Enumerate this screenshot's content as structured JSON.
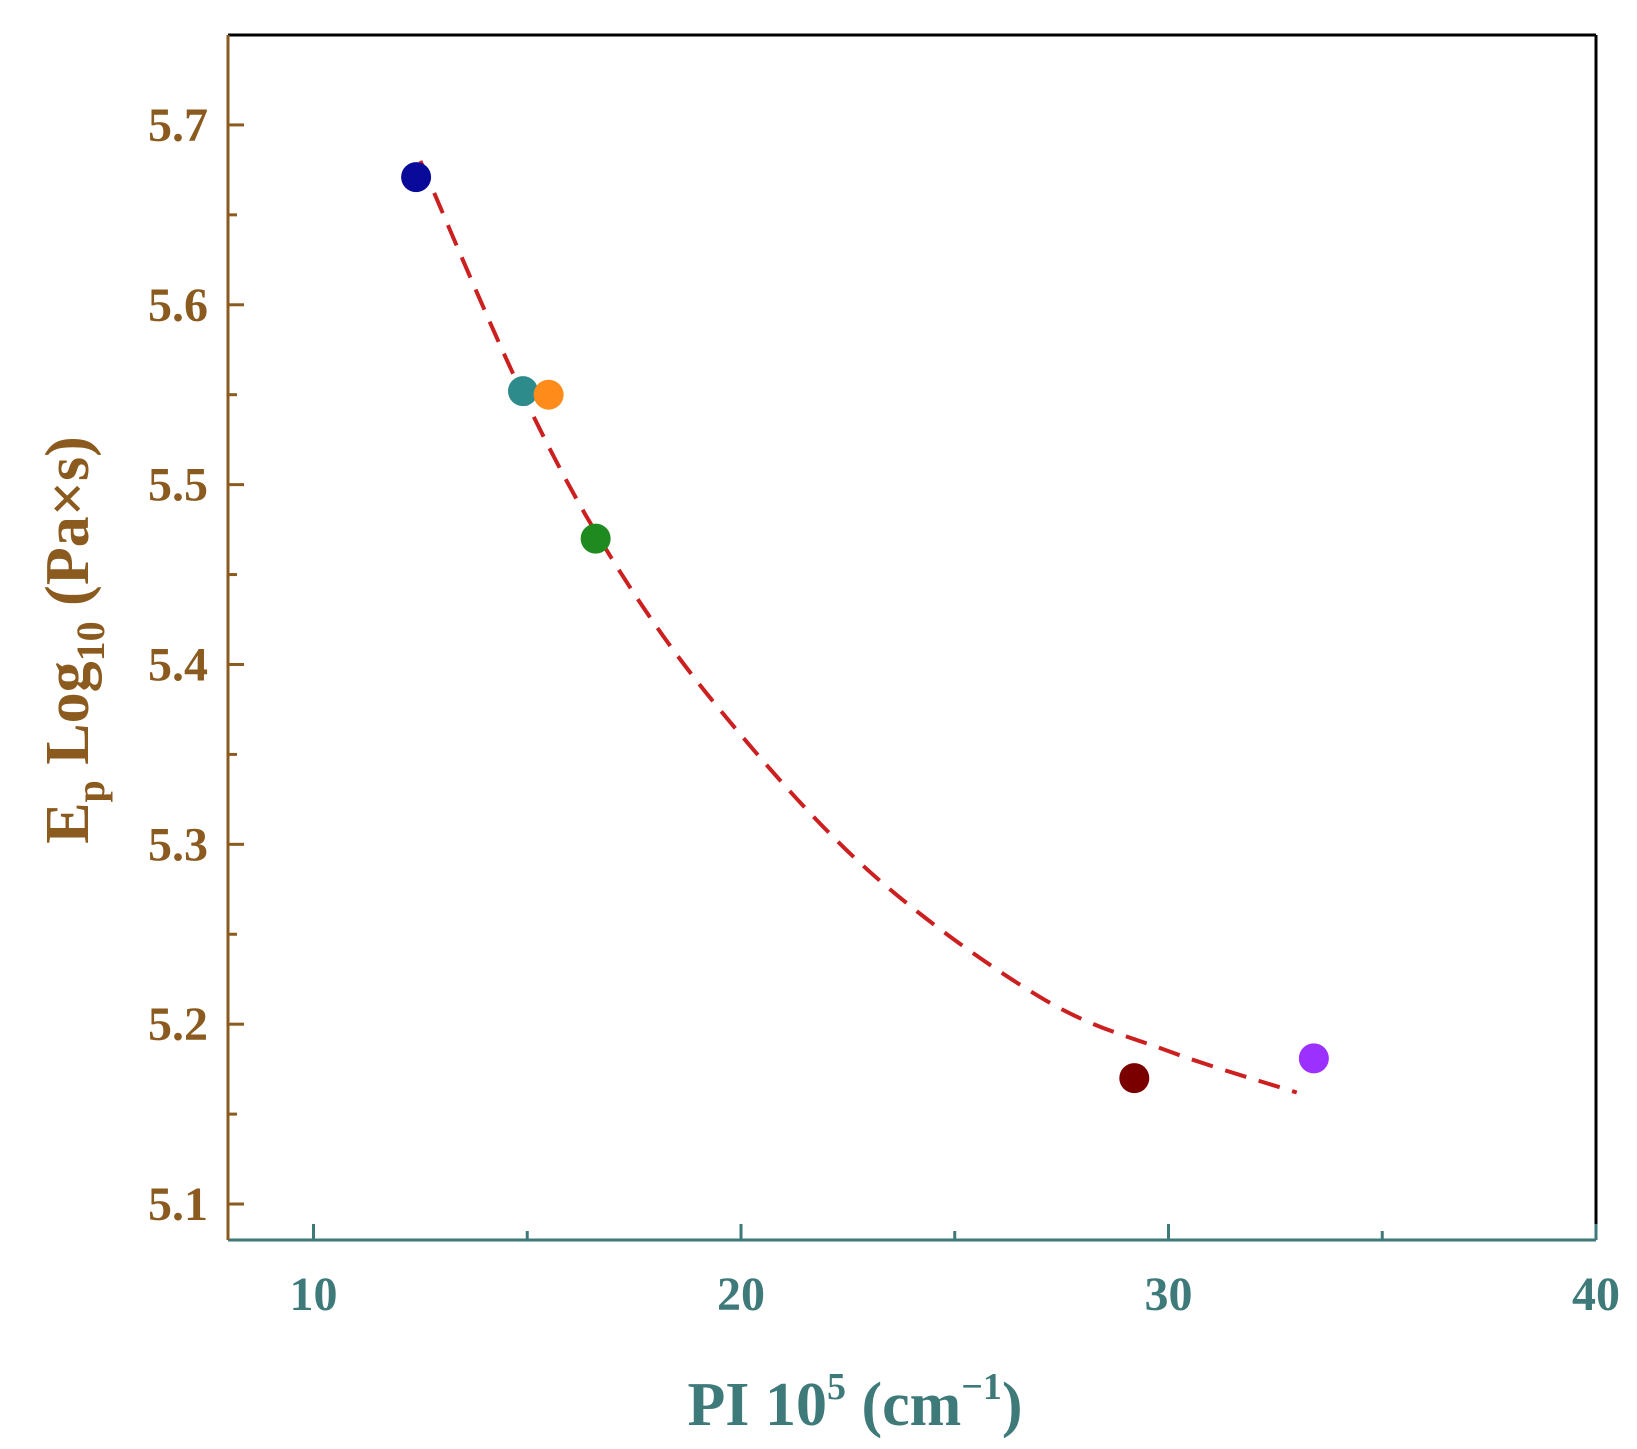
{
  "chart_data": {
    "type": "scatter",
    "title": "",
    "xlabel": {
      "prefix": "PI 10",
      "sup": "5",
      "unit_open": " (cm",
      "unit_sup": "−1",
      "unit_close": ")"
    },
    "ylabel": {
      "prefix": "E",
      "sub1": "p",
      "middle": " Log",
      "sub2": "10",
      "suffix": " (Pa×s)"
    },
    "xlim": [
      8,
      40
    ],
    "ylim": [
      5.08,
      5.75
    ],
    "x_ticks": [
      10,
      20,
      30,
      40
    ],
    "x_minor_ticks": [
      15,
      25,
      35
    ],
    "y_ticks": [
      5.1,
      5.2,
      5.3,
      5.4,
      5.5,
      5.6,
      5.7
    ],
    "y_minor_ticks": [
      5.15,
      5.25,
      5.35,
      5.45,
      5.55,
      5.65
    ],
    "x_tick_labels": [
      "10",
      "20",
      "30",
      "40"
    ],
    "y_tick_labels": [
      "5.1",
      "5.2",
      "5.3",
      "5.4",
      "5.5",
      "5.6",
      "5.7"
    ],
    "points": [
      {
        "x": 12.4,
        "y": 5.671,
        "color": "#0a0a9a"
      },
      {
        "x": 14.9,
        "y": 5.552,
        "color": "#2e8b8b"
      },
      {
        "x": 15.5,
        "y": 5.55,
        "color": "#ff8c1a"
      },
      {
        "x": 16.6,
        "y": 5.47,
        "color": "#1f8a1f"
      },
      {
        "x": 29.2,
        "y": 5.17,
        "color": "#7a0000"
      },
      {
        "x": 33.4,
        "y": 5.181,
        "color": "#9b30ff"
      }
    ],
    "fit": {
      "style": "dashed",
      "color": "#cc1f1f",
      "points": [
        [
          12.5,
          5.68
        ],
        [
          14.9,
          5.55
        ],
        [
          17.0,
          5.458
        ],
        [
          19.5,
          5.375
        ],
        [
          23.0,
          5.285
        ],
        [
          27.0,
          5.215
        ],
        [
          30.0,
          5.185
        ],
        [
          33.0,
          5.162
        ]
      ]
    },
    "colors": {
      "axis_left": "#8b5a1e",
      "axis_bottom": "#3f7a7a",
      "frame": "#000000"
    }
  }
}
